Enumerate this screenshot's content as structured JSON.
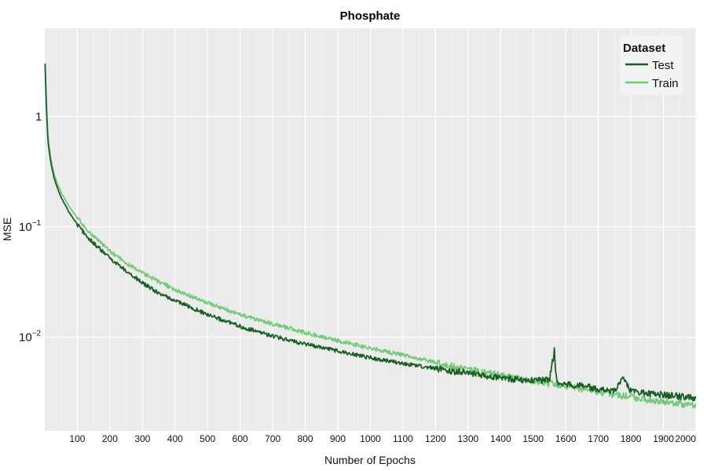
{
  "chart_data": {
    "type": "line",
    "title": "Phosphate",
    "xlabel": "Number of Epochs",
    "ylabel": "MSE",
    "xlim": [
      0,
      2000
    ],
    "ylim_log10": [
      -2.85,
      0.8
    ],
    "y_scale": "log",
    "grid": true,
    "legend_title": "Dataset",
    "legend_position": "top-right",
    "x_ticks": [
      100,
      200,
      300,
      400,
      500,
      600,
      700,
      800,
      900,
      1000,
      1100,
      1200,
      1300,
      1400,
      1500,
      1600,
      1700,
      1800,
      1900,
      2000
    ],
    "y_ticks": [
      {
        "value": 1,
        "base": "1",
        "exp": ""
      },
      {
        "value": 0.1,
        "base": "10",
        "exp": "−1"
      },
      {
        "value": 0.01,
        "base": "10",
        "exp": "−2"
      }
    ],
    "series": [
      {
        "name": "Test",
        "color": "#1a5e24",
        "x": [
          1,
          5,
          10,
          20,
          30,
          40,
          50,
          75,
          100,
          125,
          150,
          200,
          250,
          300,
          350,
          400,
          450,
          500,
          600,
          700,
          800,
          900,
          1000,
          1100,
          1200,
          1300,
          1400,
          1500,
          1550,
          1565,
          1570,
          1575,
          1600,
          1650,
          1700,
          1750,
          1775,
          1800,
          1850,
          1900,
          1950,
          2000
        ],
        "y": [
          3.0,
          1.2,
          0.58,
          0.36,
          0.27,
          0.22,
          0.185,
          0.135,
          0.105,
          0.085,
          0.071,
          0.052,
          0.04,
          0.031,
          0.025,
          0.0215,
          0.0185,
          0.016,
          0.0125,
          0.0102,
          0.0087,
          0.0075,
          0.0065,
          0.0058,
          0.0052,
          0.0047,
          0.0043,
          0.004,
          0.0041,
          0.0075,
          0.0045,
          0.0039,
          0.0037,
          0.0036,
          0.0034,
          0.0033,
          0.0043,
          0.0032,
          0.0031,
          0.003,
          0.0029,
          0.0028
        ]
      },
      {
        "name": "Train",
        "color": "#74c97a",
        "x": [
          1,
          5,
          10,
          20,
          30,
          40,
          50,
          75,
          100,
          125,
          150,
          200,
          250,
          300,
          350,
          400,
          450,
          500,
          600,
          700,
          800,
          900,
          1000,
          1100,
          1200,
          1300,
          1400,
          1500,
          1550,
          1600,
          1650,
          1700,
          1750,
          1800,
          1850,
          1900,
          1950,
          2000
        ],
        "y": [
          3.0,
          1.3,
          0.62,
          0.39,
          0.29,
          0.24,
          0.205,
          0.152,
          0.12,
          0.098,
          0.082,
          0.06,
          0.047,
          0.038,
          0.032,
          0.027,
          0.0235,
          0.0205,
          0.016,
          0.0132,
          0.011,
          0.0093,
          0.0079,
          0.0069,
          0.0059,
          0.0051,
          0.0045,
          0.004,
          0.0038,
          0.0036,
          0.0034,
          0.0032,
          0.003,
          0.0029,
          0.0027,
          0.0026,
          0.0025,
          0.0024
        ]
      }
    ]
  }
}
